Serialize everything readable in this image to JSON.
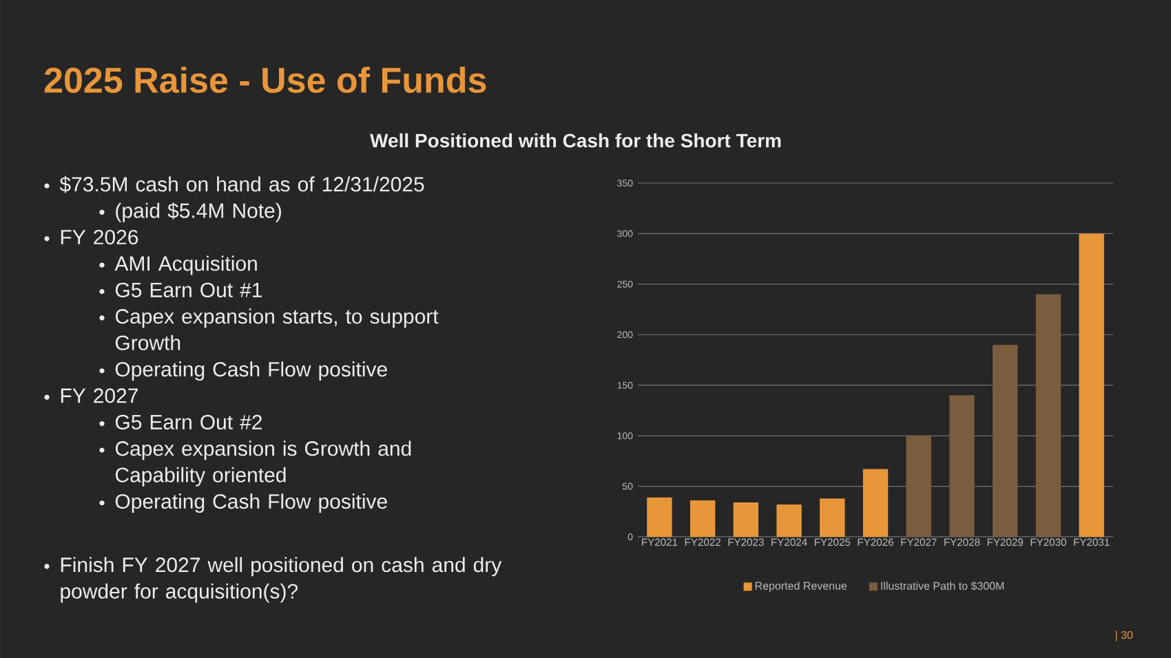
{
  "chart_data": {
    "type": "bar",
    "title": "2025 Raise - Use of Funds",
    "subtitle": "Well Positioned with Cash for the Short Term",
    "categories": [
      "FY2021",
      "FY2022",
      "FY2023",
      "FY2024",
      "FY2025",
      "FY2026",
      "FY2027",
      "FY2028",
      "FY2029",
      "FY2030",
      "FY2031"
    ],
    "series": [
      {
        "name": "Reported Revenue",
        "color": "#e8963a",
        "values": [
          39,
          36,
          34,
          32,
          38,
          67,
          null,
          null,
          null,
          null,
          300
        ]
      },
      {
        "name": "Illustrative Path to $300M",
        "color": "#7a5c3e",
        "values": [
          null,
          null,
          null,
          null,
          null,
          null,
          100,
          140,
          190,
          240,
          null
        ]
      }
    ],
    "ylim": [
      0,
      350
    ],
    "yticks": [
      0,
      50,
      100,
      150,
      200,
      250,
      300,
      350
    ],
    "grid": "y",
    "legend": "bottom",
    "annotations": [
      "$73.5M cash on hand as of 12/31/2025",
      "(paid $5.4M Note)",
      "FY 2026",
      "AMI Acquisition",
      "G5 Earn Out #1",
      "Capex expansion starts, to support Growth",
      "Operating Cash Flow positive",
      "FY 2027",
      "G5 Earn Out #2",
      "Capex expansion is Growth and Capability oriented",
      "Operating Cash Flow positive",
      "Finish FY 2027 well positioned on cash and dry powder for acquisition(s)?",
      "| 30"
    ]
  }
}
